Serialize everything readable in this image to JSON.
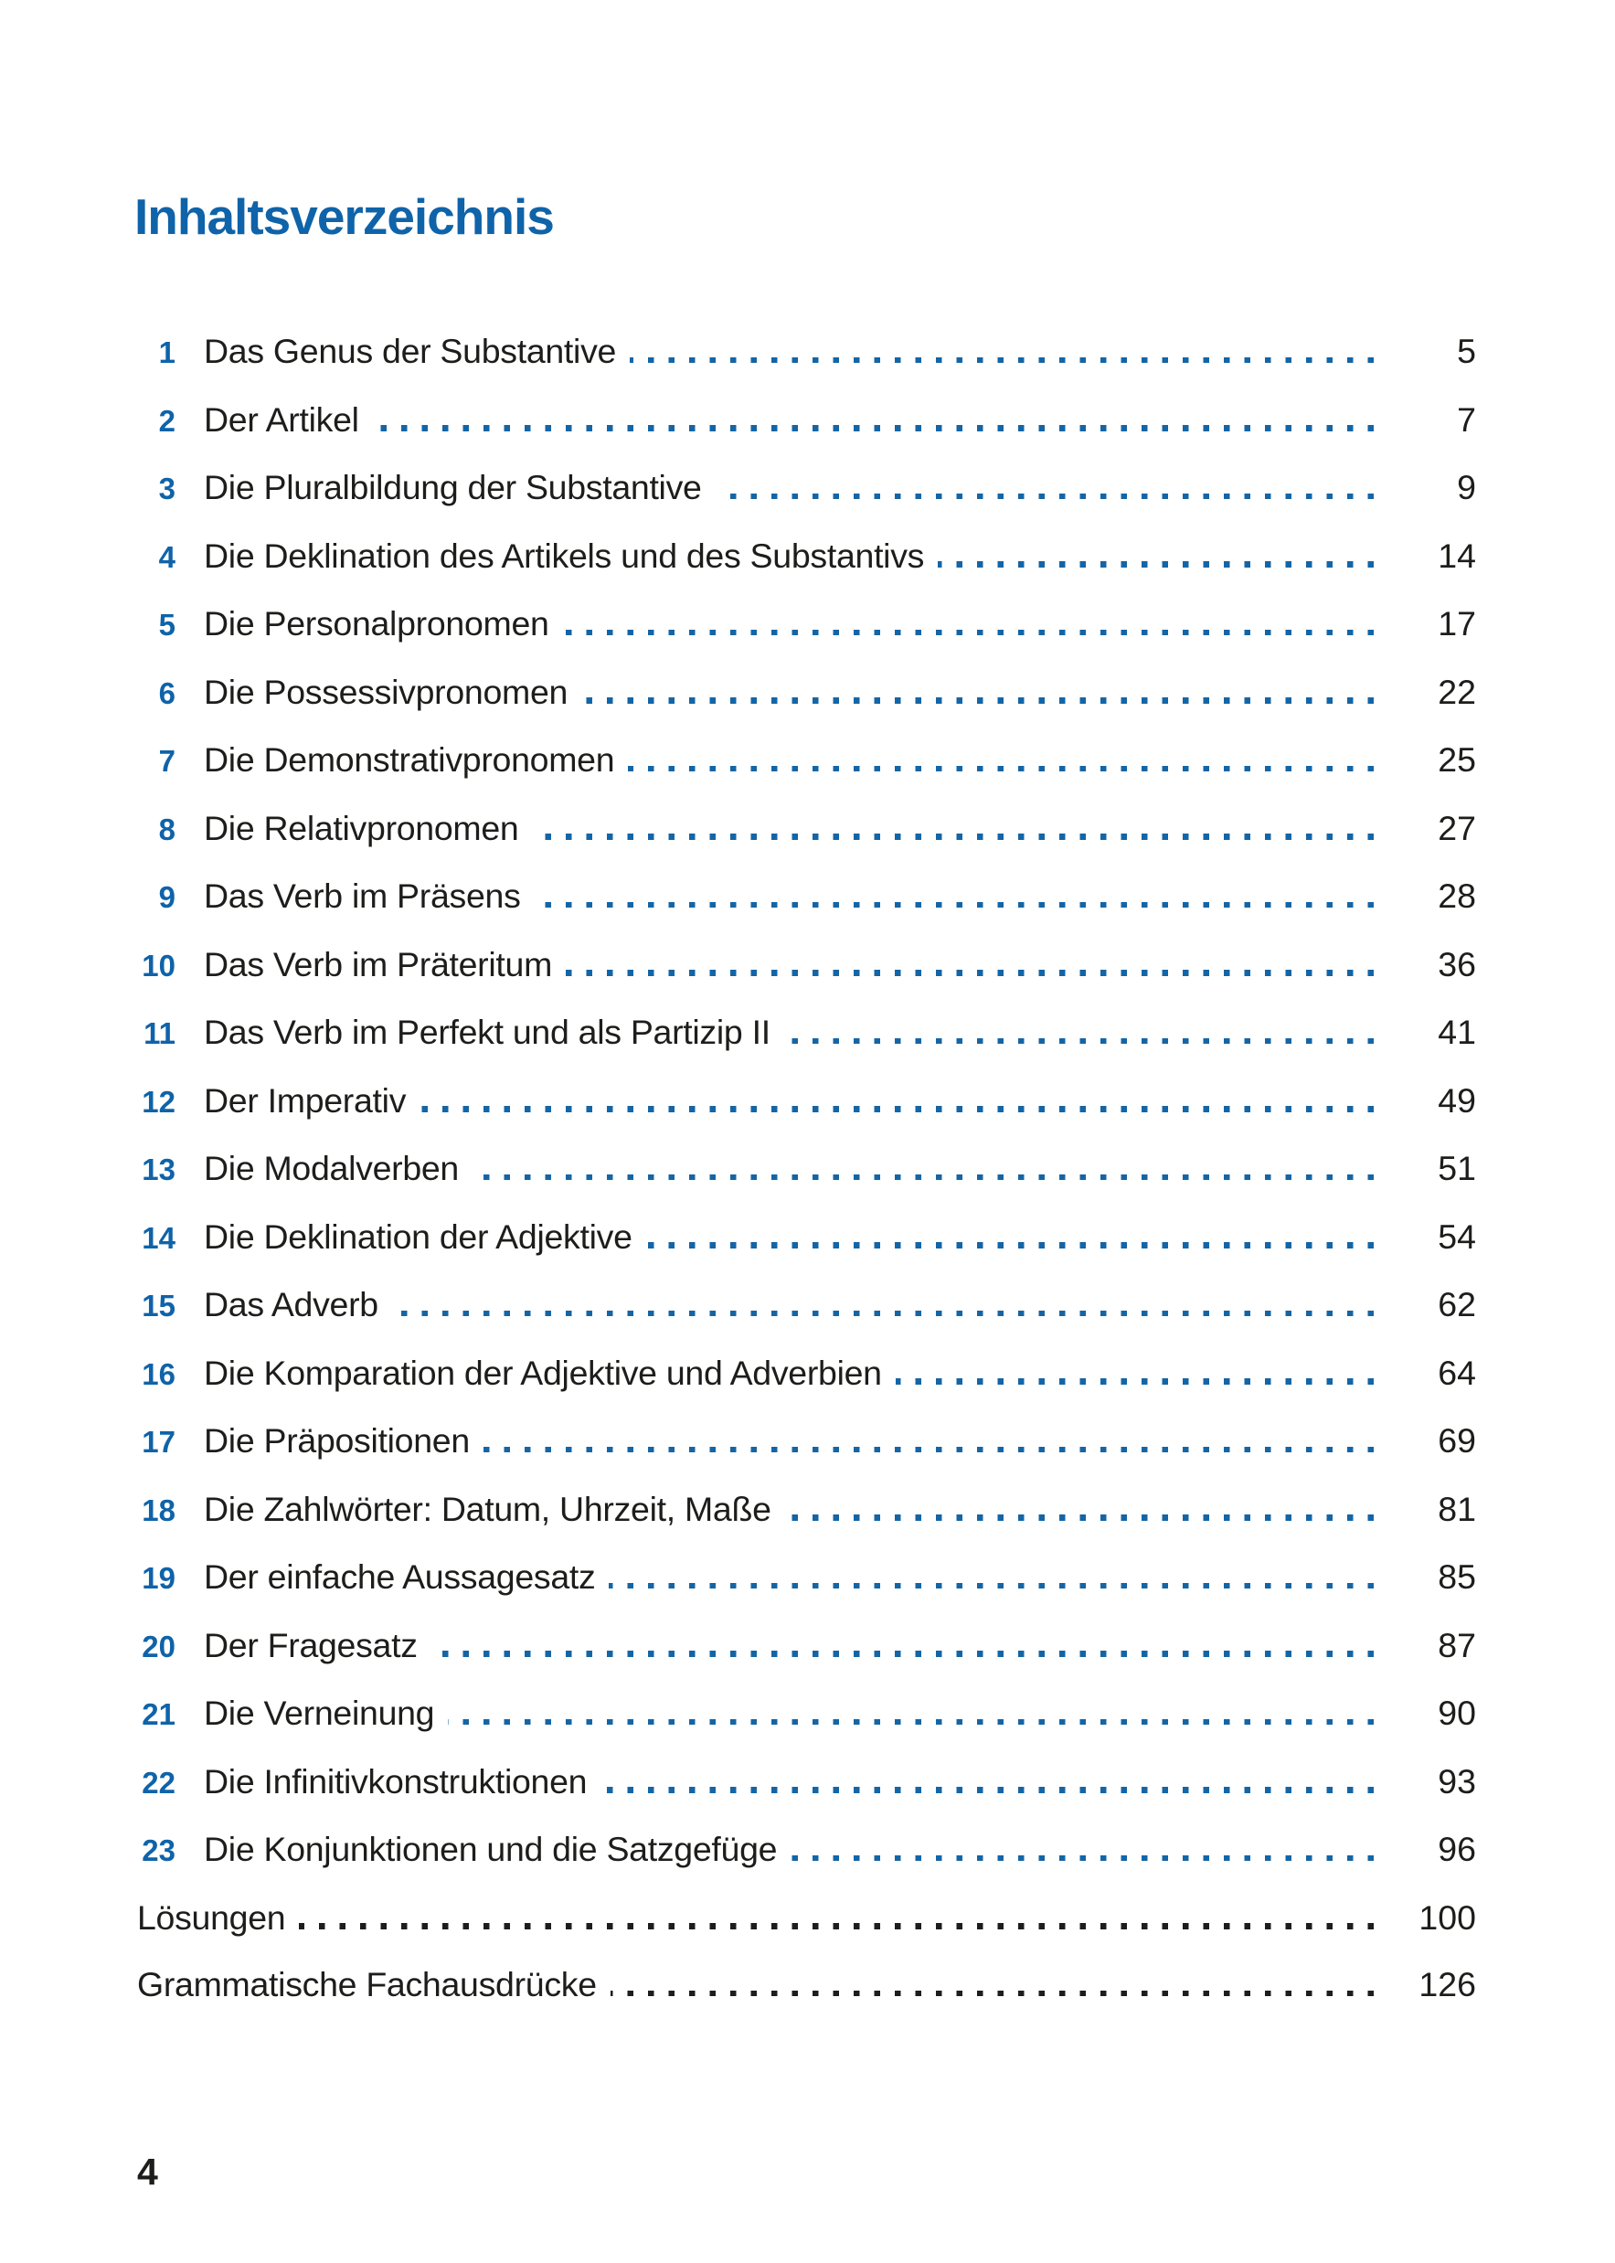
{
  "page": {
    "title": "Inhaltsverzeichnis",
    "footer_page_number": "4",
    "accent_color": "#0f63a9",
    "text_color": "#1d1d1b",
    "leader_dot_color_chapters": "#1465a6",
    "leader_dot_color_extras": "#1d1d1b"
  },
  "toc": {
    "entries": [
      {
        "num": "1",
        "title": "Das Genus der Substantive",
        "page": "5"
      },
      {
        "num": "2",
        "title": "Der Artikel",
        "page": "7"
      },
      {
        "num": "3",
        "title": "Die Pluralbildung der Substantive",
        "page": "9"
      },
      {
        "num": "4",
        "title": "Die Deklination des Artikels und des Substantivs",
        "page": "14"
      },
      {
        "num": "5",
        "title": "Die Personalpronomen",
        "page": "17"
      },
      {
        "num": "6",
        "title": "Die Possessivpronomen",
        "page": "22"
      },
      {
        "num": "7",
        "title": "Die Demonstrativpronomen",
        "page": "25"
      },
      {
        "num": "8",
        "title": "Die Relativpronomen",
        "page": "27"
      },
      {
        "num": "9",
        "title": "Das Verb im Präsens",
        "page": "28"
      },
      {
        "num": "10",
        "title": "Das Verb im Präteritum",
        "page": "36"
      },
      {
        "num": "11",
        "title": "Das Verb im Perfekt und als Partizip II",
        "page": "41"
      },
      {
        "num": "12",
        "title": "Der Imperativ",
        "page": "49"
      },
      {
        "num": "13",
        "title": "Die Modalverben",
        "page": "51"
      },
      {
        "num": "14",
        "title": "Die Deklination der Adjektive",
        "page": "54"
      },
      {
        "num": "15",
        "title": "Das Adverb",
        "page": "62"
      },
      {
        "num": "16",
        "title": "Die Komparation der Adjektive und Adverbien",
        "page": "64"
      },
      {
        "num": "17",
        "title": "Die Präpositionen",
        "page": "69"
      },
      {
        "num": "18",
        "title": "Die Zahlwörter: Datum, Uhrzeit, Maße",
        "page": "81"
      },
      {
        "num": "19",
        "title": "Der einfache Aussagesatz",
        "page": "85"
      },
      {
        "num": "20",
        "title": "Der Fragesatz",
        "page": "87"
      },
      {
        "num": "21",
        "title": "Die Verneinung",
        "page": "90"
      },
      {
        "num": "22",
        "title": "Die Infinitivkonstruktionen",
        "page": "93"
      },
      {
        "num": "23",
        "title": "Die Konjunktionen und die Satzgefüge",
        "page": "96"
      }
    ],
    "extra_entries": [
      {
        "title": "Lösungen",
        "page": "100"
      },
      {
        "title": "Grammatische Fachausdrücke",
        "page": "126"
      }
    ]
  }
}
